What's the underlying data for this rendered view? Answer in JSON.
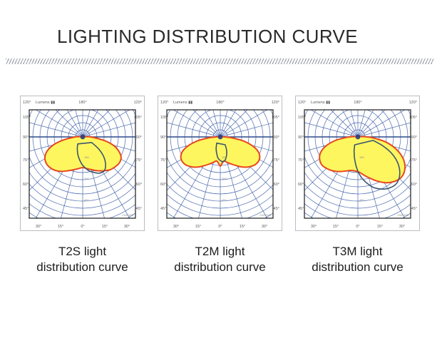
{
  "header": {
    "title": "LIGHTING DISTRIBUTION CURVE"
  },
  "colors": {
    "title_text": "#2a2a2a",
    "caption_text": "#1d1d1d",
    "panel_frame": "#b9bdc2",
    "plot_border": "#1a1a1a",
    "grid_blue": "#3a5ba6",
    "axis_blue_dark": "#2b4a8c",
    "envelope_fill_yellow": "#fdf65f",
    "envelope_stroke_red": "#e8481d",
    "inner_curve_blue": "#3a5570",
    "center_dot_blue": "#2b3f7e",
    "tick_label_gray": "#5a5a5a",
    "scale_label_gray": "#8a8a8a"
  },
  "chart_data": [
    {
      "type": "polar_photometric",
      "id": "T2S",
      "caption_line1": "T2S light",
      "caption_line2": "distribution curve",
      "angle_convention": "0 = nadir (down), positive = right, degrees",
      "grid": {
        "angular_step_deg": 15,
        "ring_step": 10,
        "corner_label_left": "120°",
        "corner_label_right": "120°",
        "top_center_label": "180°",
        "unit_label": "Lumens ▮▮",
        "side_labels": [
          "105°",
          "90°",
          "75°",
          "60°",
          "45°"
        ],
        "bottom_labels": [
          "30°",
          "15°",
          "0°",
          "15°",
          "30°"
        ],
        "scale_labels": [
          "150",
          "300",
          "450"
        ],
        "plane_label": "C0/C180"
      },
      "envelope_points": [
        [
          -95,
          5
        ],
        [
          -88,
          13
        ],
        [
          -80,
          30
        ],
        [
          -74,
          44
        ],
        [
          -68,
          54
        ],
        [
          -62,
          60
        ],
        [
          -55,
          63
        ],
        [
          -48,
          63
        ],
        [
          -40,
          61
        ],
        [
          -32,
          57
        ],
        [
          -24,
          52
        ],
        [
          -16,
          48
        ],
        [
          -8,
          45
        ],
        [
          0,
          43
        ],
        [
          8,
          45
        ],
        [
          16,
          48
        ],
        [
          24,
          52
        ],
        [
          32,
          56
        ],
        [
          40,
          60
        ],
        [
          48,
          62
        ],
        [
          55,
          63
        ],
        [
          62,
          61
        ],
        [
          68,
          55
        ],
        [
          74,
          46
        ],
        [
          80,
          32
        ],
        [
          88,
          14
        ],
        [
          95,
          5
        ]
      ],
      "inner_points": [
        [
          -35,
          12
        ],
        [
          -25,
          18
        ],
        [
          -15,
          26
        ],
        [
          -8,
          32
        ],
        [
          -2,
          38
        ],
        [
          4,
          43
        ],
        [
          10,
          48
        ],
        [
          17,
          52
        ],
        [
          25,
          56
        ],
        [
          33,
          56
        ],
        [
          40,
          50
        ],
        [
          47,
          40
        ],
        [
          53,
          28
        ],
        [
          58,
          15
        ]
      ]
    },
    {
      "type": "polar_photometric",
      "id": "T2M",
      "caption_line1": "T2M light",
      "caption_line2": "distribution curve",
      "angle_convention": "0 = nadir (down), positive = right, degrees",
      "grid": {
        "angular_step_deg": 15,
        "ring_step": 10,
        "corner_label_left": "120°",
        "corner_label_right": "120°",
        "top_center_label": "180°",
        "unit_label": "Lumens ▮▮",
        "side_labels": [
          "105°",
          "90°",
          "75°",
          "60°",
          "45°"
        ],
        "bottom_labels": [
          "30°",
          "15°",
          "0°",
          "15°",
          "30°"
        ],
        "scale_labels": [
          "150",
          "300",
          "450"
        ],
        "plane_label": "C0/C180"
      },
      "envelope_points": [
        [
          -93,
          4
        ],
        [
          -86,
          15
        ],
        [
          -80,
          33
        ],
        [
          -74,
          48
        ],
        [
          -68,
          58
        ],
        [
          -61,
          63
        ],
        [
          -53,
          63
        ],
        [
          -45,
          59
        ],
        [
          -37,
          53
        ],
        [
          -29,
          46
        ],
        [
          -22,
          41
        ],
        [
          -15,
          37
        ],
        [
          -9,
          34
        ],
        [
          -4,
          37
        ],
        [
          0,
          41
        ],
        [
          4,
          37
        ],
        [
          9,
          34
        ],
        [
          15,
          37
        ],
        [
          22,
          41
        ],
        [
          29,
          46
        ],
        [
          37,
          53
        ],
        [
          45,
          59
        ],
        [
          53,
          63
        ],
        [
          61,
          63
        ],
        [
          68,
          58
        ],
        [
          74,
          48
        ],
        [
          80,
          33
        ],
        [
          86,
          15
        ],
        [
          93,
          4
        ]
      ],
      "inner_points": [
        [
          -30,
          10
        ],
        [
          -20,
          17
        ],
        [
          -12,
          24
        ],
        [
          -6,
          30
        ],
        [
          0,
          33
        ],
        [
          6,
          35
        ],
        [
          12,
          33
        ],
        [
          18,
          28
        ],
        [
          25,
          21
        ],
        [
          32,
          13
        ]
      ]
    },
    {
      "type": "polar_photometric",
      "id": "T3M",
      "caption_line1": "T3M light",
      "caption_line2": "distribution curve",
      "angle_convention": "0 = nadir (down), positive = right, degrees",
      "grid": {
        "angular_step_deg": 15,
        "ring_step": 10,
        "corner_label_left": "120°",
        "corner_label_right": "120°",
        "top_center_label": "180°",
        "unit_label": "Lumens ▮▮",
        "side_labels": [
          "105°",
          "90°",
          "75°",
          "60°",
          "45°"
        ],
        "bottom_labels": [
          "30°",
          "15°",
          "0°",
          "15°",
          "30°"
        ],
        "scale_labels": [
          "150",
          "300",
          "450"
        ],
        "plane_label": "C0/C180"
      },
      "envelope_points": [
        [
          -95,
          6
        ],
        [
          -88,
          15
        ],
        [
          -81,
          32
        ],
        [
          -74,
          47
        ],
        [
          -67,
          57
        ],
        [
          -60,
          62
        ],
        [
          -52,
          64
        ],
        [
          -44,
          62
        ],
        [
          -36,
          59
        ],
        [
          -28,
          55
        ],
        [
          -20,
          51
        ],
        [
          -12,
          48
        ],
        [
          -4,
          48
        ],
        [
          3,
          50
        ],
        [
          10,
          55
        ],
        [
          17,
          61
        ],
        [
          24,
          68
        ],
        [
          31,
          75
        ],
        [
          38,
          80
        ],
        [
          45,
          83
        ],
        [
          52,
          82
        ],
        [
          59,
          77
        ],
        [
          66,
          68
        ],
        [
          73,
          55
        ],
        [
          80,
          39
        ],
        [
          87,
          20
        ],
        [
          94,
          7
        ]
      ],
      "inner_points": [
        [
          -22,
          12
        ],
        [
          -14,
          22
        ],
        [
          -7,
          34
        ],
        [
          -1,
          46
        ],
        [
          5,
          57
        ],
        [
          11,
          66
        ],
        [
          17,
          74
        ],
        [
          24,
          80
        ],
        [
          31,
          84
        ],
        [
          39,
          85
        ],
        [
          47,
          80
        ],
        [
          55,
          70
        ],
        [
          63,
          55
        ],
        [
          70,
          38
        ],
        [
          77,
          22
        ]
      ]
    }
  ]
}
